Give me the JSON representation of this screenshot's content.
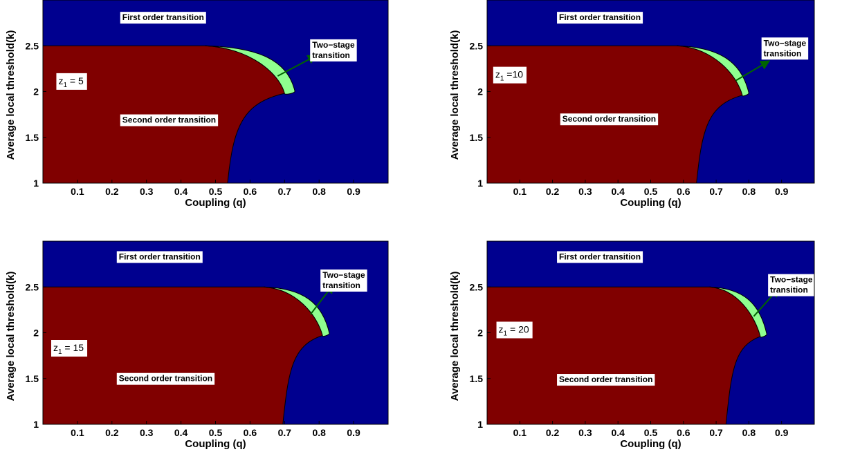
{
  "colors": {
    "first_order": "#00008f",
    "second_order": "#800000",
    "two_stage": "#8fff8f",
    "arrow": "#006400",
    "axes": "#000000",
    "label_box": "#ffffff"
  },
  "chart_data": [
    {
      "type": "area",
      "xlabel": "Coupling (q)",
      "ylabel": "Average local threshold(k)",
      "xlim": [
        0,
        1
      ],
      "ylim": [
        1,
        3
      ],
      "xticks": [
        "0.1",
        "0.2",
        "0.3",
        "0.4",
        "0.5",
        "0.6",
        "0.7",
        "0.8",
        "0.9"
      ],
      "yticks": [
        "1",
        "1.5",
        "2",
        "2.5"
      ],
      "grid": false,
      "z_label": {
        "prefix": "z",
        "subscript": "1",
        "text": " = 5",
        "x": 0.045,
        "y": 2.08
      },
      "regions": [
        {
          "name": "First order transition",
          "x": 0.23,
          "y": 2.78
        },
        {
          "name": "Second order transition",
          "x": 0.23,
          "y": 1.66
        },
        {
          "name_lines": [
            "Two−stage",
            "transition"
          ],
          "x": 0.78,
          "y": 2.48
        }
      ],
      "boundary": {
        "plateau_y": 2.5,
        "plateau_end_x": 0.47,
        "tip": [
          0.73,
          2.0
        ],
        "cusp": [
          0.7,
          1.98
        ],
        "bottom_x": 0.535
      },
      "arrow": {
        "from": [
          0.68,
          2.17
        ],
        "to": [
          0.79,
          2.39
        ]
      }
    },
    {
      "type": "area",
      "xlabel": "Coupling (q)",
      "ylabel": "Average local threshold(k)",
      "xlim": [
        0,
        1
      ],
      "ylim": [
        1,
        3
      ],
      "xticks": [
        "0.1",
        "0.2",
        "0.3",
        "0.4",
        "0.5",
        "0.6",
        "0.7",
        "0.8",
        "0.9"
      ],
      "yticks": [
        "1",
        "1.5",
        "2",
        "2.5"
      ],
      "grid": false,
      "z_label": {
        "prefix": "z",
        "subscript": "1",
        "text": " =10",
        "x": 0.025,
        "y": 2.15
      },
      "regions": [
        {
          "name": "First order transition",
          "x": 0.22,
          "y": 2.78
        },
        {
          "name": "Second order transition",
          "x": 0.23,
          "y": 1.67
        },
        {
          "name_lines": [
            "Two−stage",
            "transition"
          ],
          "x": 0.845,
          "y": 2.5
        }
      ],
      "boundary": {
        "plateau_y": 2.5,
        "plateau_end_x": 0.58,
        "tip": [
          0.8,
          1.98
        ],
        "cusp": [
          0.78,
          1.96
        ],
        "bottom_x": 0.64
      },
      "arrow": {
        "from": [
          0.76,
          2.12
        ],
        "to": [
          0.86,
          2.33
        ]
      }
    },
    {
      "type": "area",
      "xlabel": "Coupling (q)",
      "ylabel": "Average local threshold(k)",
      "xlim": [
        0,
        1
      ],
      "ylim": [
        1,
        3
      ],
      "xticks": [
        "0.1",
        "0.2",
        "0.3",
        "0.4",
        "0.5",
        "0.6",
        "0.7",
        "0.8",
        "0.9"
      ],
      "yticks": [
        "1",
        "1.5",
        "2",
        "2.5"
      ],
      "grid": false,
      "z_label": {
        "prefix": "z",
        "subscript": "1",
        "text": " = 15",
        "x": 0.03,
        "y": 1.8
      },
      "regions": [
        {
          "name": "First order transition",
          "x": 0.22,
          "y": 2.8
        },
        {
          "name": "Second order transition",
          "x": 0.22,
          "y": 1.47
        },
        {
          "name_lines": [
            "Two−stage",
            "transition"
          ],
          "x": 0.81,
          "y": 2.6
        }
      ],
      "boundary": {
        "plateau_y": 2.5,
        "plateau_end_x": 0.64,
        "tip": [
          0.83,
          1.99
        ],
        "cusp": [
          0.81,
          1.97
        ],
        "bottom_x": 0.695
      },
      "arrow": {
        "from": [
          0.775,
          2.2
        ],
        "to": [
          0.84,
          2.52
        ]
      }
    },
    {
      "type": "area",
      "xlabel": "Coupling (q)",
      "ylabel": "Average local threshold(k)",
      "xlim": [
        0,
        1
      ],
      "ylim": [
        1,
        3
      ],
      "xticks": [
        "0.1",
        "0.2",
        "0.3",
        "0.4",
        "0.5",
        "0.6",
        "0.7",
        "0.8",
        "0.9"
      ],
      "yticks": [
        "1",
        "1.5",
        "2",
        "2.5"
      ],
      "grid": false,
      "z_label": {
        "prefix": "z",
        "subscript": "1",
        "text": " = 20",
        "x": 0.035,
        "y": 2.0
      },
      "regions": [
        {
          "name": "First order transition",
          "x": 0.22,
          "y": 2.8
        },
        {
          "name": "Second order transition",
          "x": 0.22,
          "y": 1.46
        },
        {
          "name_lines": [
            "Two−stage",
            "transition"
          ],
          "x": 0.865,
          "y": 2.55
        }
      ],
      "boundary": {
        "plateau_y": 2.5,
        "plateau_end_x": 0.68,
        "tip": [
          0.855,
          1.98
        ],
        "cusp": [
          0.835,
          1.96
        ],
        "bottom_x": 0.73
      },
      "arrow": {
        "from": [
          0.815,
          2.18
        ],
        "to": [
          0.89,
          2.48
        ]
      }
    }
  ]
}
